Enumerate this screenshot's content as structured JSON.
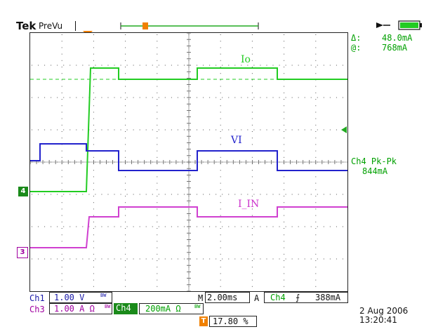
{
  "header": {
    "brand": "Tek",
    "mode": "PreVu"
  },
  "right_panel": {
    "delta_label": "Δ:",
    "delta_value": "48.0mA",
    "at_label": "@:",
    "at_value": "768mA",
    "measurement": "Ch4 Pk-Pk",
    "measurement_value": "844mA"
  },
  "traces": {
    "io_label": "Io",
    "vi_label": "VI",
    "iin_label": "I_IN",
    "ch4_marker": "4",
    "ch3_marker": "3",
    "trigger_marker": "T"
  },
  "status": {
    "ch1_label": "Ch1",
    "ch1_scale": "1.00 V",
    "ch1_suffix": "BW",
    "ch3_label": "Ch3",
    "ch3_scale": "1.00 A Ω",
    "ch3_suffix": "BW",
    "ch4_label": "Ch4",
    "ch4_scale": "200mA Ω",
    "ch4_suffix": "BW",
    "timebase_prefix": "M",
    "timebase": "2.00ms",
    "acq_mode": "A",
    "trig_source": "Ch4",
    "trig_slope": "⨍",
    "trig_level": "388mA",
    "trigger_pos_marker": "T",
    "trigger_pos": "17.80 %",
    "date": "2 Aug 2006",
    "time": "13:20:41"
  },
  "colors": {
    "ch1": "#1a1aa8",
    "ch3": "#cc33cc",
    "ch4": "#22cc22",
    "trigger": "#f08000"
  }
}
